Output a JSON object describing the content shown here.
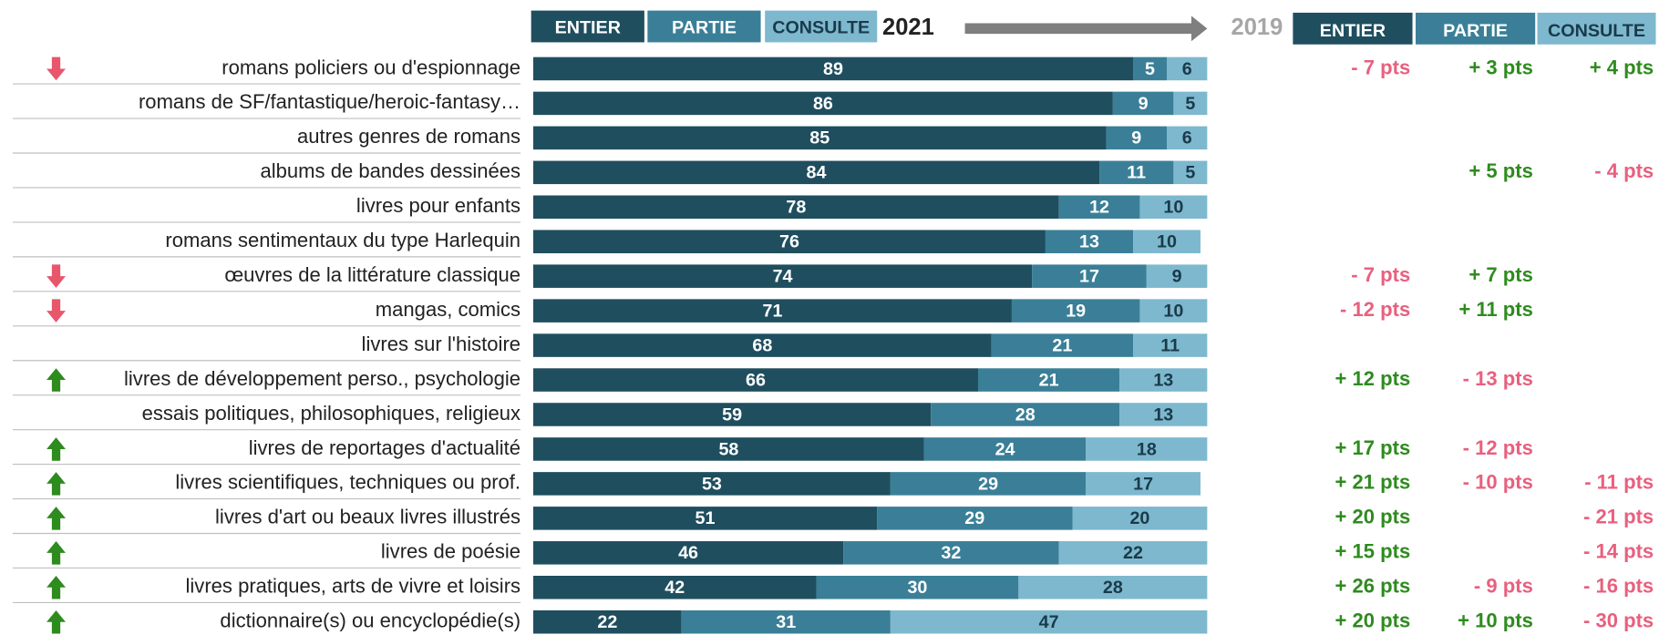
{
  "chart_data": {
    "type": "stacked_bar_h",
    "year_current": "2021",
    "year_previous": "2019",
    "xlim": [
      0,
      100
    ],
    "categories": [
      "romans policiers ou d'espionnage",
      "romans de SF/fantastique/heroic-fantasy…",
      "autres genres de romans",
      "albums de bandes dessinées",
      "livres pour enfants",
      "romans sentimentaux du type Harlequin",
      "œuvres de la littérature classique",
      "mangas, comics",
      "livres sur l'histoire",
      "livres de développement perso., psychologie",
      "essais politiques, philosophiques, religieux",
      "livres de reportages d'actualité",
      "livres scientifiques, techniques ou prof.",
      "livres d'art ou beaux livres illustrés",
      "livres de poésie",
      "livres pratiques, arts de vivre et loisirs",
      "dictionnaire(s) ou encyclopédie(s)"
    ],
    "trend": [
      "down",
      null,
      null,
      null,
      null,
      null,
      "down",
      "down",
      null,
      "up",
      null,
      "up",
      "up",
      "up",
      "up",
      "up",
      "up"
    ],
    "trend_colors": {
      "up": "#2e8b1e",
      "down": "#e8566c"
    },
    "series": [
      {
        "name": "ENTIER",
        "color": "#1f4e5f",
        "text_color": "#ffffff",
        "values": [
          89,
          86,
          85,
          84,
          78,
          76,
          74,
          71,
          68,
          66,
          59,
          58,
          53,
          51,
          46,
          42,
          22
        ]
      },
      {
        "name": "PARTIE",
        "color": "#3a7f97",
        "text_color": "#ffffff",
        "values": [
          5,
          9,
          9,
          11,
          12,
          13,
          17,
          19,
          21,
          21,
          28,
          24,
          29,
          29,
          32,
          30,
          31
        ]
      },
      {
        "name": "CONSULTE",
        "color": "#7db8ce",
        "text_color": "#1a3a4a",
        "values": [
          6,
          5,
          6,
          5,
          10,
          10,
          9,
          10,
          11,
          13,
          13,
          18,
          17,
          20,
          22,
          28,
          47
        ]
      }
    ],
    "changes": [
      [
        "- 7 pts",
        "+ 3 pts",
        "+ 4 pts"
      ],
      [
        null,
        null,
        null
      ],
      [
        null,
        null,
        null
      ],
      [
        null,
        "+ 5 pts",
        "- 4 pts"
      ],
      [
        null,
        null,
        null
      ],
      [
        null,
        null,
        null
      ],
      [
        "- 7 pts",
        "+ 7 pts",
        null
      ],
      [
        "- 12 pts",
        "+ 11 pts",
        null
      ],
      [
        null,
        null,
        null
      ],
      [
        "+ 12 pts",
        "- 13 pts",
        null
      ],
      [
        null,
        null,
        null
      ],
      [
        "+ 17 pts",
        "- 12 pts",
        null
      ],
      [
        "+ 21 pts",
        "- 10 pts",
        "- 11 pts"
      ],
      [
        "+ 20 pts",
        null,
        "- 21 pts"
      ],
      [
        "+ 15 pts",
        null,
        "- 14 pts"
      ],
      [
        "+ 26 pts",
        "- 9 pts",
        "- 16 pts"
      ],
      [
        "+ 20 pts",
        "+ 10 pts",
        "- 30 pts"
      ]
    ],
    "change_colors": {
      "positive": "#2e8b1e",
      "negative": "#e8607e"
    }
  }
}
